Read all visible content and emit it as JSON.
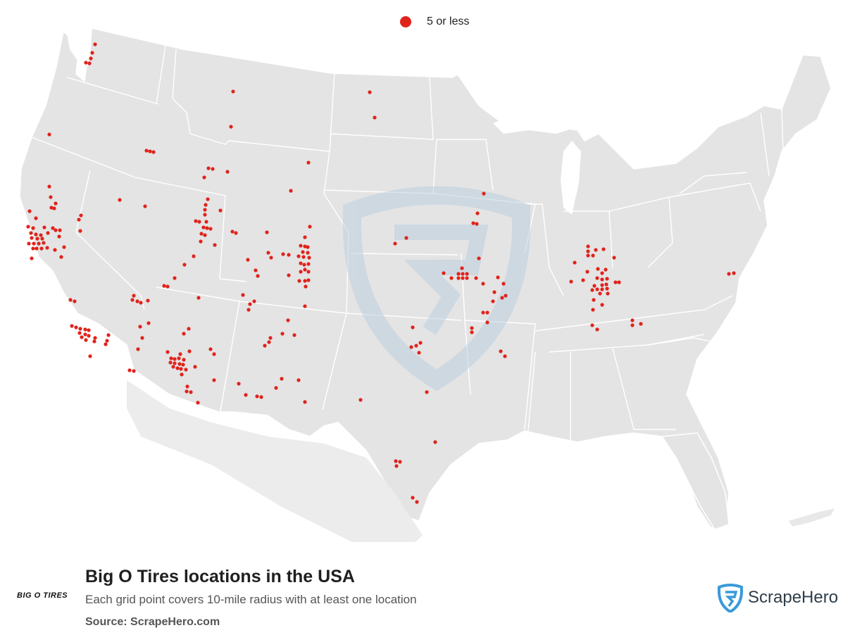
{
  "legend": {
    "label": "5 or less",
    "color": "#e0231b"
  },
  "title": "Big O Tires locations in the USA",
  "subtitle": "Each grid point covers 10-mile radius with at least one location",
  "source": "Source: ScrapeHero.com",
  "brand_logo_text": "BIG O TIRES",
  "scrapehero_logo_text": "ScrapeHero",
  "colors": {
    "land": "#e4e4e4",
    "border": "#ffffff",
    "dot": "#e0231b",
    "watermark": "#bcd0e0"
  },
  "locations": [
    [
      135,
      63
    ],
    [
      131,
      75
    ],
    [
      129,
      83
    ],
    [
      122,
      89
    ],
    [
      127,
      90
    ],
    [
      331,
      130
    ],
    [
      525,
      131
    ],
    [
      532,
      167
    ],
    [
      328,
      180
    ],
    [
      70,
      191
    ],
    [
      208,
      214
    ],
    [
      213,
      215
    ],
    [
      218,
      216
    ],
    [
      438,
      231
    ],
    [
      296,
      239
    ],
    [
      302,
      240
    ],
    [
      323,
      244
    ],
    [
      290,
      252
    ],
    [
      70,
      265
    ],
    [
      413,
      271
    ],
    [
      72,
      280
    ],
    [
      170,
      284
    ],
    [
      295,
      283
    ],
    [
      79,
      289
    ],
    [
      206,
      293
    ],
    [
      73,
      295
    ],
    [
      77,
      296
    ],
    [
      292,
      291
    ],
    [
      291,
      298
    ],
    [
      313,
      299
    ],
    [
      42,
      300
    ],
    [
      291,
      305
    ],
    [
      51,
      310
    ],
    [
      115,
      306
    ],
    [
      112,
      312
    ],
    [
      278,
      314
    ],
    [
      283,
      315
    ],
    [
      293,
      315
    ],
    [
      40,
      322
    ],
    [
      47,
      324
    ],
    [
      63,
      323
    ],
    [
      75,
      324
    ],
    [
      79,
      327
    ],
    [
      85,
      327
    ],
    [
      114,
      328
    ],
    [
      289,
      323
    ],
    [
      294,
      324
    ],
    [
      299,
      325
    ],
    [
      44,
      331
    ],
    [
      51,
      333
    ],
    [
      58,
      334
    ],
    [
      68,
      331
    ],
    [
      84,
      336
    ],
    [
      45,
      338
    ],
    [
      53,
      339
    ],
    [
      60,
      339
    ],
    [
      41,
      346
    ],
    [
      48,
      346
    ],
    [
      55,
      346
    ],
    [
      62,
      345
    ],
    [
      47,
      353
    ],
    [
      52,
      353
    ],
    [
      59,
      353
    ],
    [
      67,
      352
    ],
    [
      78,
      355
    ],
    [
      91,
      351
    ],
    [
      45,
      367
    ],
    [
      87,
      365
    ],
    [
      286,
      332
    ],
    [
      291,
      334
    ],
    [
      285,
      343
    ],
    [
      330,
      329
    ],
    [
      335,
      331
    ],
    [
      379,
      330
    ],
    [
      440,
      322
    ],
    [
      433,
      337
    ],
    [
      427,
      349
    ],
    [
      433,
      350
    ],
    [
      437,
      351
    ],
    [
      430,
      358
    ],
    [
      437,
      359
    ],
    [
      424,
      364
    ],
    [
      431,
      365
    ],
    [
      439,
      366
    ],
    [
      381,
      359
    ],
    [
      385,
      366
    ],
    [
      402,
      361
    ],
    [
      410,
      362
    ],
    [
      352,
      369
    ],
    [
      305,
      348
    ],
    [
      275,
      364
    ],
    [
      262,
      376
    ],
    [
      427,
      374
    ],
    [
      432,
      376
    ],
    [
      438,
      375
    ],
    [
      363,
      384
    ],
    [
      433,
      383
    ],
    [
      427,
      386
    ],
    [
      438,
      386
    ],
    [
      366,
      392
    ],
    [
      410,
      391
    ],
    [
      425,
      399
    ],
    [
      433,
      399
    ],
    [
      438,
      398
    ],
    [
      434,
      407
    ],
    [
      248,
      395
    ],
    [
      233,
      406
    ],
    [
      238,
      407
    ],
    [
      345,
      419
    ],
    [
      361,
      428
    ],
    [
      355,
      432
    ],
    [
      353,
      440
    ],
    [
      433,
      435
    ],
    [
      190,
      420
    ],
    [
      188,
      426
    ],
    [
      195,
      428
    ],
    [
      210,
      427
    ],
    [
      200,
      430
    ],
    [
      100,
      426
    ],
    [
      106,
      428
    ],
    [
      282,
      423
    ],
    [
      409,
      455
    ],
    [
      401,
      474
    ],
    [
      418,
      476
    ],
    [
      384,
      480
    ],
    [
      382,
      486
    ],
    [
      376,
      491
    ],
    [
      199,
      464
    ],
    [
      211,
      459
    ],
    [
      268,
      467
    ],
    [
      261,
      474
    ],
    [
      102,
      463
    ],
    [
      108,
      465
    ],
    [
      114,
      467
    ],
    [
      121,
      468
    ],
    [
      126,
      469
    ],
    [
      113,
      473
    ],
    [
      121,
      475
    ],
    [
      126,
      477
    ],
    [
      116,
      479
    ],
    [
      122,
      483
    ],
    [
      135,
      480
    ],
    [
      154,
      476
    ],
    [
      152,
      484
    ],
    [
      134,
      485
    ],
    [
      150,
      489
    ],
    [
      202,
      480
    ],
    [
      196,
      496
    ],
    [
      299,
      496
    ],
    [
      304,
      503
    ],
    [
      238,
      500
    ],
    [
      256,
      503
    ],
    [
      269,
      499
    ],
    [
      243,
      509
    ],
    [
      248,
      510
    ],
    [
      254,
      509
    ],
    [
      261,
      511
    ],
    [
      242,
      515
    ],
    [
      248,
      516
    ],
    [
      255,
      517
    ],
    [
      260,
      518
    ],
    [
      246,
      521
    ],
    [
      252,
      523
    ],
    [
      257,
      524
    ],
    [
      264,
      525
    ],
    [
      277,
      521
    ],
    [
      258,
      532
    ],
    [
      128,
      506
    ],
    [
      184,
      526
    ],
    [
      190,
      527
    ],
    [
      304,
      540
    ],
    [
      266,
      549
    ],
    [
      265,
      556
    ],
    [
      271,
      557
    ],
    [
      281,
      572
    ],
    [
      339,
      545
    ],
    [
      349,
      561
    ],
    [
      365,
      563
    ],
    [
      371,
      564
    ],
    [
      392,
      551
    ],
    [
      400,
      538
    ],
    [
      424,
      540
    ],
    [
      433,
      571
    ],
    [
      687,
      275
    ],
    [
      678,
      303
    ],
    [
      672,
      317
    ],
    [
      677,
      318
    ],
    [
      577,
      338
    ],
    [
      561,
      346
    ],
    [
      680,
      367
    ],
    [
      656,
      381
    ],
    [
      630,
      388
    ],
    [
      651,
      389
    ],
    [
      657,
      389
    ],
    [
      663,
      389
    ],
    [
      641,
      395
    ],
    [
      651,
      395
    ],
    [
      657,
      395
    ],
    [
      663,
      395
    ],
    [
      676,
      395
    ],
    [
      707,
      394
    ],
    [
      686,
      403
    ],
    [
      715,
      403
    ],
    [
      702,
      415
    ],
    [
      718,
      420
    ],
    [
      713,
      423
    ],
    [
      700,
      428
    ],
    [
      686,
      444
    ],
    [
      692,
      444
    ],
    [
      670,
      466
    ],
    [
      692,
      458
    ],
    [
      670,
      472
    ],
    [
      586,
      465
    ],
    [
      591,
      491
    ],
    [
      584,
      493
    ],
    [
      597,
      487
    ],
    [
      595,
      501
    ],
    [
      711,
      499
    ],
    [
      717,
      506
    ],
    [
      606,
      557
    ],
    [
      512,
      568
    ],
    [
      618,
      628
    ],
    [
      562,
      655
    ],
    [
      568,
      656
    ],
    [
      563,
      662
    ],
    [
      586,
      707
    ],
    [
      592,
      713
    ],
    [
      835,
      350
    ],
    [
      846,
      355
    ],
    [
      857,
      354
    ],
    [
      835,
      357
    ],
    [
      835,
      363
    ],
    [
      842,
      363
    ],
    [
      872,
      366
    ],
    [
      816,
      373
    ],
    [
      834,
      386
    ],
    [
      849,
      382
    ],
    [
      860,
      383
    ],
    [
      855,
      388
    ],
    [
      828,
      398
    ],
    [
      811,
      400
    ],
    [
      848,
      395
    ],
    [
      855,
      397
    ],
    [
      862,
      396
    ],
    [
      844,
      406
    ],
    [
      855,
      405
    ],
    [
      861,
      404
    ],
    [
      874,
      401
    ],
    [
      879,
      401
    ],
    [
      841,
      412
    ],
    [
      848,
      411
    ],
    [
      855,
      411
    ],
    [
      862,
      410
    ],
    [
      852,
      417
    ],
    [
      863,
      417
    ],
    [
      843,
      426
    ],
    [
      855,
      433
    ],
    [
      842,
      440
    ],
    [
      898,
      455
    ],
    [
      898,
      462
    ],
    [
      910,
      460
    ],
    [
      841,
      462
    ],
    [
      848,
      468
    ],
    [
      1035,
      389
    ],
    [
      1042,
      388
    ]
  ]
}
